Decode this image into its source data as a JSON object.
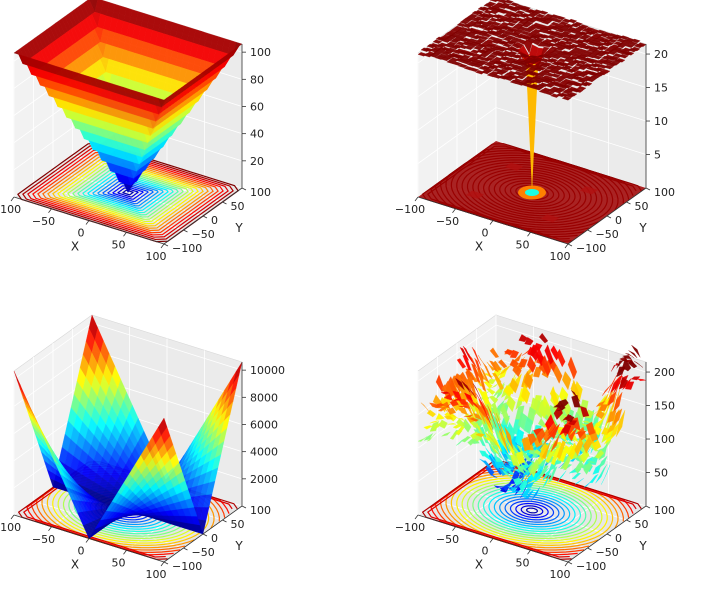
{
  "chart_data": [
    {
      "type": "surface3d",
      "variant": "cone",
      "xlabel": "X",
      "ylabel": "Y",
      "x_ticks": [
        "−100",
        "−50",
        "0",
        "50",
        "100"
      ],
      "y_ticks": [
        "−100",
        "−50",
        "0",
        "50",
        "100"
      ],
      "z_ticks": [
        "20",
        "40",
        "60",
        "80",
        "100"
      ],
      "xlim": [
        -100,
        100
      ],
      "ylim": [
        -100,
        100
      ],
      "zlim": [
        0,
        100
      ],
      "colormap": "jet",
      "has_floor_contours": true
    },
    {
      "type": "surface3d",
      "variant": "plateau-with-pit",
      "xlabel": "X",
      "ylabel": "Y",
      "x_ticks": [
        "−100",
        "−50",
        "0",
        "50",
        "100"
      ],
      "y_ticks": [
        "−100",
        "−50",
        "0",
        "50",
        "100"
      ],
      "z_ticks": [
        "5",
        "10",
        "15",
        "20"
      ],
      "xlim": [
        -100,
        100
      ],
      "ylim": [
        -100,
        100
      ],
      "zlim": [
        0,
        22
      ],
      "colormap": "jet",
      "has_floor_contours": true
    },
    {
      "type": "surface3d",
      "variant": "saddle-product",
      "xlabel": "X",
      "ylabel": "Y",
      "x_ticks": [
        "−100",
        "−50",
        "0",
        "50",
        "100"
      ],
      "y_ticks": [
        "−100",
        "−50",
        "0",
        "50",
        "100"
      ],
      "z_ticks": [
        "2000",
        "4000",
        "6000",
        "8000",
        "10000"
      ],
      "xlim": [
        -100,
        100
      ],
      "ylim": [
        -100,
        100
      ],
      "zlim": [
        0,
        10000
      ],
      "colormap": "jet",
      "has_floor_contours": true
    },
    {
      "type": "surface3d",
      "variant": "noisy-bowl",
      "xlabel": "X",
      "ylabel": "Y",
      "x_ticks": [
        "−100",
        "−50",
        "0",
        "50",
        "100"
      ],
      "y_ticks": [
        "−100",
        "−50",
        "0",
        "50",
        "100"
      ],
      "z_ticks": [
        "50",
        "100",
        "150",
        "200"
      ],
      "xlim": [
        -100,
        100
      ],
      "ylim": [
        -100,
        100
      ],
      "zlim": [
        0,
        210
      ],
      "colormap": "jet",
      "has_floor_contours": true
    }
  ]
}
